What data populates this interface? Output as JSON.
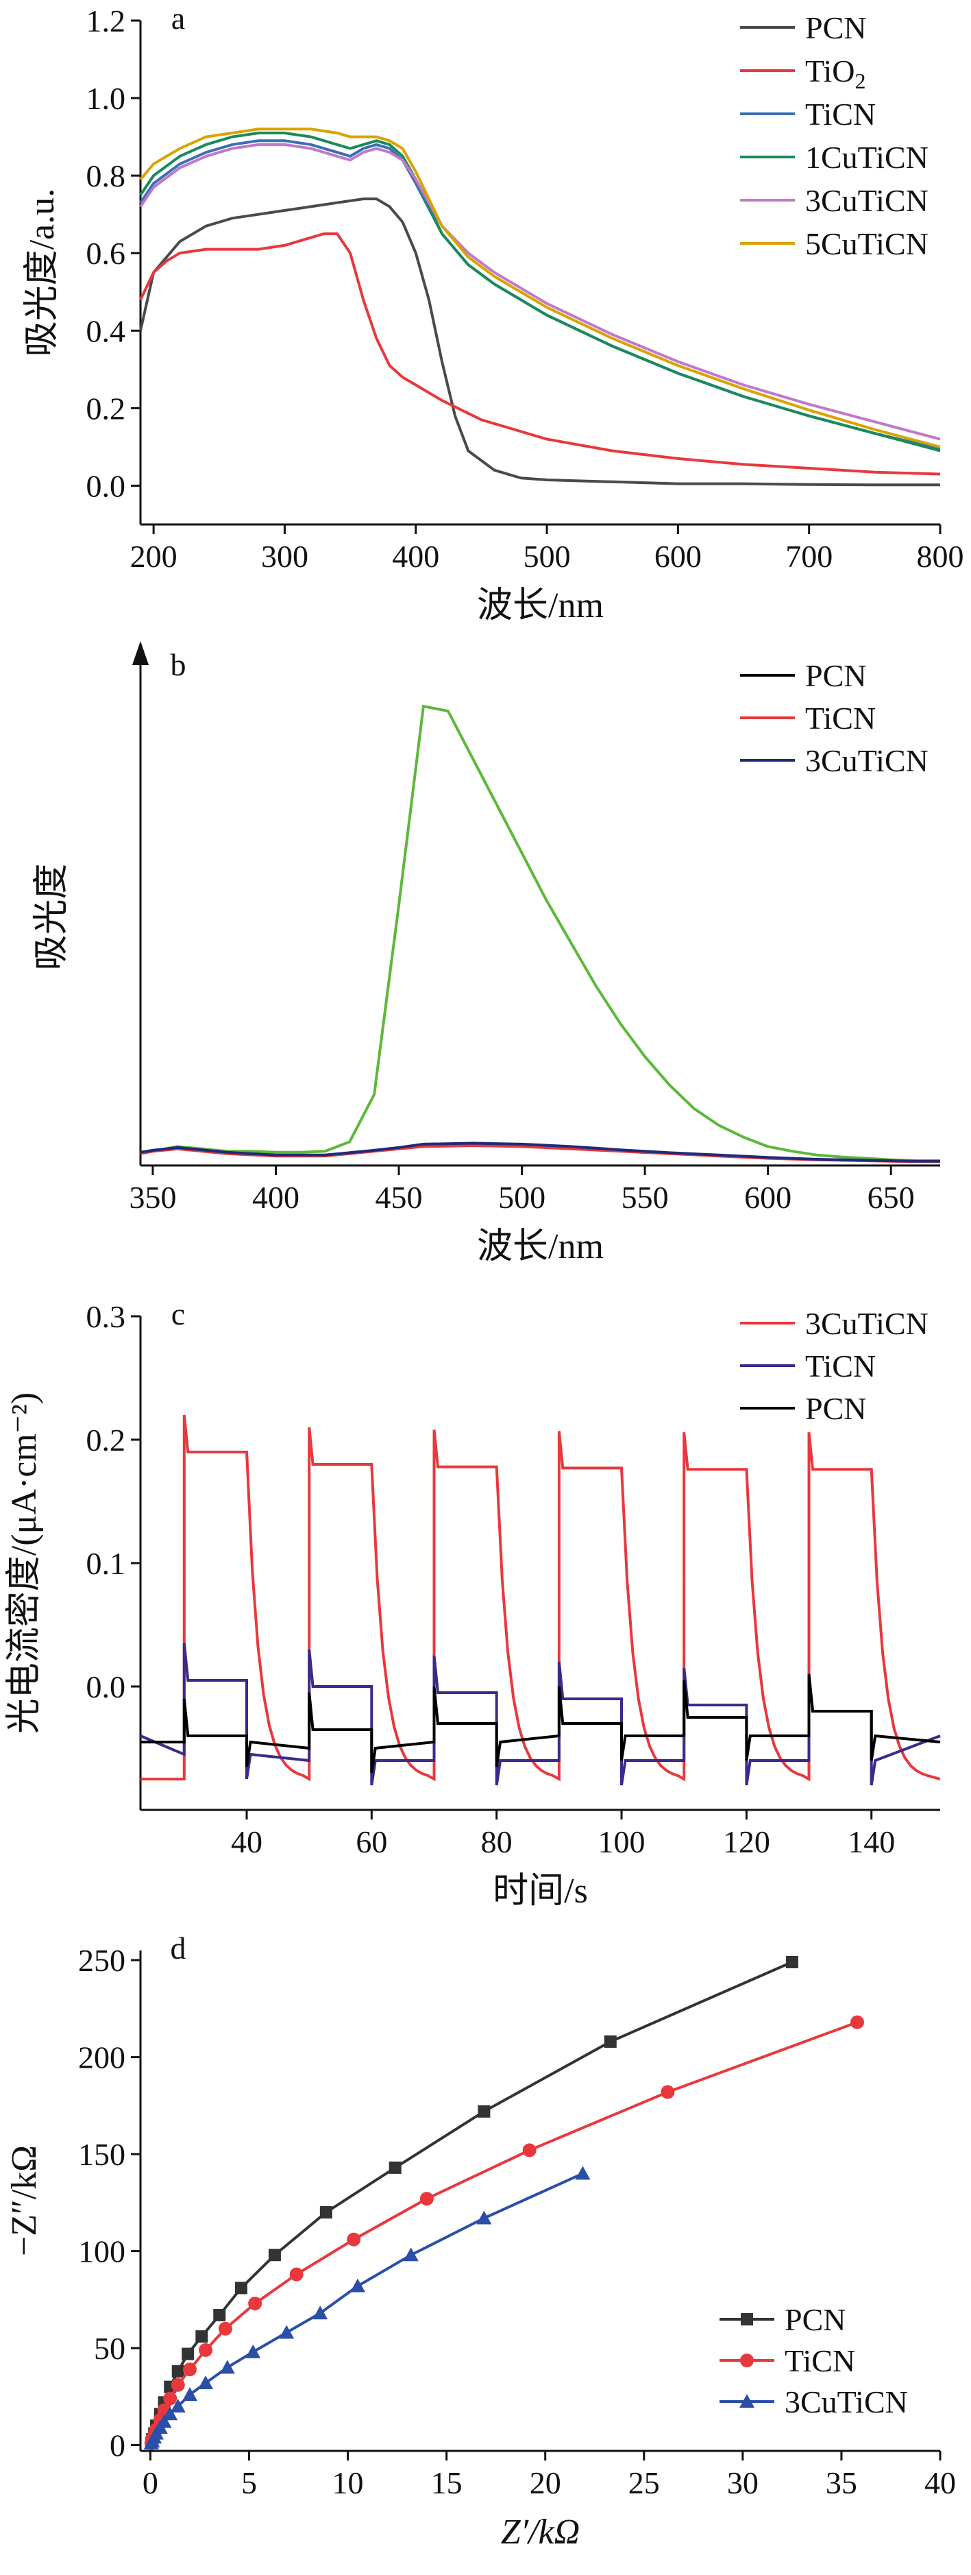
{
  "chart_data": [
    {
      "panel_label": "a",
      "type": "line",
      "xlabel": "波长/nm",
      "ylabel": "吸光度/a.u.",
      "xlim": [
        190,
        800
      ],
      "ylim": [
        -0.1,
        1.2
      ],
      "xticks": [
        200,
        300,
        400,
        500,
        600,
        700,
        800
      ],
      "yticks": [
        "0.0",
        "0.2",
        "0.4",
        "0.6",
        "0.8",
        "1.0",
        "1.2"
      ],
      "grid": false,
      "legend_position": "top-right",
      "series": [
        {
          "name": "PCN",
          "color": "#4a4a4a",
          "x": [
            190,
            200,
            220,
            240,
            260,
            280,
            300,
            320,
            340,
            360,
            370,
            380,
            390,
            400,
            410,
            420,
            430,
            440,
            460,
            480,
            500,
            550,
            600,
            650,
            700,
            750,
            800
          ],
          "y": [
            0.4,
            0.55,
            0.63,
            0.67,
            0.69,
            0.7,
            0.71,
            0.72,
            0.73,
            0.74,
            0.74,
            0.72,
            0.68,
            0.6,
            0.48,
            0.32,
            0.18,
            0.09,
            0.04,
            0.02,
            0.015,
            0.01,
            0.005,
            0.005,
            0.003,
            0.002,
            0.002
          ]
        },
        {
          "name": "TiO2",
          "name_sub": "2",
          "color": "#e8383d",
          "x": [
            190,
            200,
            210,
            220,
            240,
            260,
            280,
            300,
            320,
            330,
            340,
            350,
            360,
            370,
            380,
            390,
            400,
            420,
            450,
            500,
            550,
            600,
            650,
            700,
            750,
            800
          ],
          "y": [
            0.48,
            0.55,
            0.58,
            0.6,
            0.61,
            0.61,
            0.61,
            0.62,
            0.64,
            0.65,
            0.65,
            0.6,
            0.48,
            0.38,
            0.31,
            0.28,
            0.26,
            0.22,
            0.17,
            0.12,
            0.09,
            0.07,
            0.055,
            0.045,
            0.035,
            0.03
          ]
        },
        {
          "name": "TiCN",
          "color": "#3a6fb5",
          "x": [
            190,
            200,
            220,
            240,
            260,
            280,
            300,
            320,
            340,
            350,
            360,
            370,
            380,
            390,
            400,
            420,
            440,
            460,
            500,
            550,
            600,
            650,
            700,
            750,
            800
          ],
          "y": [
            0.73,
            0.78,
            0.83,
            0.86,
            0.88,
            0.89,
            0.89,
            0.88,
            0.86,
            0.85,
            0.87,
            0.88,
            0.87,
            0.84,
            0.78,
            0.65,
            0.57,
            0.52,
            0.44,
            0.36,
            0.29,
            0.23,
            0.18,
            0.135,
            0.095
          ]
        },
        {
          "name": "1CuTiCN",
          "color": "#1a8a5a",
          "x": [
            190,
            200,
            220,
            240,
            260,
            280,
            300,
            320,
            340,
            350,
            360,
            370,
            380,
            390,
            400,
            420,
            440,
            460,
            500,
            550,
            600,
            650,
            700,
            750,
            800
          ],
          "y": [
            0.75,
            0.8,
            0.85,
            0.88,
            0.9,
            0.91,
            0.91,
            0.9,
            0.88,
            0.87,
            0.88,
            0.89,
            0.88,
            0.85,
            0.79,
            0.65,
            0.57,
            0.52,
            0.44,
            0.36,
            0.29,
            0.23,
            0.18,
            0.135,
            0.09
          ]
        },
        {
          "name": "3CuTiCN",
          "color": "#c079c8",
          "x": [
            190,
            200,
            220,
            240,
            260,
            280,
            300,
            320,
            340,
            350,
            360,
            370,
            380,
            390,
            400,
            420,
            440,
            460,
            500,
            550,
            600,
            650,
            700,
            750,
            800
          ],
          "y": [
            0.72,
            0.77,
            0.82,
            0.85,
            0.87,
            0.88,
            0.88,
            0.87,
            0.85,
            0.84,
            0.86,
            0.87,
            0.86,
            0.84,
            0.79,
            0.67,
            0.6,
            0.55,
            0.47,
            0.39,
            0.32,
            0.26,
            0.21,
            0.165,
            0.12
          ]
        },
        {
          "name": "5CuTiCN",
          "color": "#d9a300",
          "x": [
            190,
            200,
            220,
            240,
            260,
            280,
            300,
            320,
            340,
            350,
            360,
            370,
            380,
            390,
            400,
            420,
            440,
            460,
            500,
            550,
            600,
            650,
            700,
            750,
            800
          ],
          "y": [
            0.79,
            0.83,
            0.87,
            0.9,
            0.91,
            0.92,
            0.92,
            0.92,
            0.91,
            0.9,
            0.9,
            0.9,
            0.89,
            0.87,
            0.81,
            0.67,
            0.59,
            0.54,
            0.46,
            0.38,
            0.31,
            0.25,
            0.195,
            0.145,
            0.1
          ]
        }
      ]
    },
    {
      "panel_label": "b",
      "type": "line",
      "xlabel": "波长/nm",
      "ylabel": "吸光度",
      "xlim": [
        345,
        670
      ],
      "ylim": [
        0,
        1.05
      ],
      "xticks": [
        350,
        400,
        450,
        500,
        550,
        600,
        650
      ],
      "yticks": [],
      "grid": false,
      "legend_position": "top-right",
      "series": [
        {
          "name": "PCN",
          "color": "#000000",
          "x": [
            345,
            350,
            360,
            370,
            380,
            390,
            400,
            410,
            420,
            430,
            440,
            450,
            460,
            470,
            480,
            490,
            500,
            510,
            520,
            530,
            540,
            550,
            560,
            570,
            580,
            590,
            600,
            610,
            620,
            630,
            640,
            650,
            660,
            670
          ],
          "y": [
            0.025,
            0.03,
            0.04,
            0.035,
            0.03,
            0.03,
            0.028,
            0.028,
            0.03,
            0.05,
            0.15,
            0.55,
            0.97,
            0.96,
            0.86,
            0.76,
            0.66,
            0.56,
            0.47,
            0.38,
            0.3,
            0.23,
            0.17,
            0.12,
            0.085,
            0.06,
            0.04,
            0.03,
            0.022,
            0.018,
            0.015,
            0.012,
            0.01,
            0.01
          ],
          "line_color": "#5cb83a"
        },
        {
          "name": "TiCN",
          "color": "#e8383d",
          "x": [
            345,
            350,
            360,
            380,
            400,
            420,
            440,
            450,
            460,
            480,
            500,
            520,
            540,
            560,
            580,
            600,
            620,
            640,
            660,
            670
          ],
          "y": [
            0.025,
            0.03,
            0.035,
            0.025,
            0.02,
            0.02,
            0.03,
            0.035,
            0.04,
            0.042,
            0.04,
            0.035,
            0.03,
            0.025,
            0.02,
            0.015,
            0.012,
            0.01,
            0.008,
            0.008
          ]
        },
        {
          "name": "3CuTiCN",
          "color": "#1f2a7a",
          "x": [
            345,
            350,
            360,
            380,
            400,
            420,
            440,
            450,
            460,
            480,
            500,
            520,
            540,
            560,
            580,
            600,
            620,
            640,
            660,
            670
          ],
          "y": [
            0.028,
            0.032,
            0.038,
            0.028,
            0.022,
            0.022,
            0.032,
            0.038,
            0.045,
            0.047,
            0.045,
            0.04,
            0.033,
            0.027,
            0.022,
            0.017,
            0.013,
            0.011,
            0.009,
            0.009
          ]
        }
      ]
    },
    {
      "panel_label": "c",
      "type": "line",
      "xlabel": "时间/s",
      "ylabel": "光电流密度/(μA·cm⁻²)",
      "xlim": [
        23,
        151
      ],
      "ylim": [
        -0.1,
        0.3
      ],
      "xticks": [
        40,
        60,
        80,
        100,
        120,
        140
      ],
      "yticks": [
        "0.0",
        "0.1",
        "0.2",
        "0.3"
      ],
      "grid": false,
      "legend_position": "top-right",
      "light_on": [
        30,
        50,
        70,
        90,
        110,
        130
      ],
      "light_off": [
        40,
        60,
        80,
        100,
        120,
        140
      ],
      "series": [
        {
          "name": "3CuTiCN",
          "color": "#e8383d",
          "on_levels": [
            0.19,
            0.18,
            0.178,
            0.177,
            0.176,
            0.176
          ],
          "base": -0.075
        },
        {
          "name": "TiCN",
          "color": "#3a2a8a",
          "on_levels": [
            0.005,
            0.0,
            -0.005,
            -0.01,
            -0.015,
            -0.02
          ],
          "off_levels": [
            -0.055,
            -0.06,
            -0.06,
            -0.06,
            -0.06,
            -0.06
          ],
          "base": -0.04
        },
        {
          "name": "PCN",
          "color": "#000000",
          "on_levels": [
            -0.04,
            -0.035,
            -0.03,
            -0.03,
            -0.025,
            -0.02
          ],
          "off_levels": [
            -0.045,
            -0.05,
            -0.045,
            -0.04,
            -0.04,
            -0.04
          ],
          "base": -0.045
        }
      ]
    },
    {
      "panel_label": "d",
      "type": "scatter",
      "xlabel": "Z′/kΩ",
      "ylabel": "−Z″/kΩ",
      "xlim": [
        -0.5,
        40
      ],
      "ylim": [
        -3,
        255
      ],
      "xticks": [
        0,
        5,
        10,
        15,
        20,
        25,
        30,
        35,
        40
      ],
      "yticks": [
        0,
        50,
        100,
        150,
        200,
        250
      ],
      "grid": false,
      "legend_position": "bottom-right",
      "series": [
        {
          "name": "PCN",
          "color": "#333333",
          "marker": "square",
          "x": [
            0.05,
            0.1,
            0.2,
            0.3,
            0.5,
            0.7,
            1.0,
            1.4,
            1.9,
            2.6,
            3.5,
            4.6,
            6.3,
            8.9,
            12.4,
            16.9,
            23.3,
            32.5
          ],
          "y": [
            1,
            3,
            6,
            10,
            16,
            22,
            30,
            38,
            47,
            56,
            67,
            81,
            98,
            120,
            143,
            172,
            208,
            249
          ]
        },
        {
          "name": "TiCN",
          "color": "#e8383d",
          "marker": "circle",
          "x": [
            0.05,
            0.1,
            0.2,
            0.3,
            0.5,
            0.7,
            1.0,
            1.4,
            2.0,
            2.8,
            3.8,
            5.3,
            7.4,
            10.3,
            14.0,
            19.2,
            26.2,
            35.8
          ],
          "y": [
            1,
            3,
            5,
            8,
            13,
            18,
            24,
            31,
            39,
            49,
            60,
            73,
            88,
            106,
            127,
            152,
            182,
            218
          ]
        },
        {
          "name": "3CuTiCN",
          "color": "#2a4fa8",
          "marker": "triangle",
          "x": [
            0.05,
            0.1,
            0.2,
            0.3,
            0.5,
            0.7,
            1.0,
            1.4,
            2.0,
            2.8,
            3.9,
            5.2,
            6.9,
            8.6,
            10.5,
            13.2,
            16.9,
            21.9
          ],
          "y": [
            1,
            2,
            4,
            6,
            9,
            12,
            16,
            20,
            26,
            32,
            40,
            48,
            58,
            68,
            82,
            98,
            117,
            140
          ]
        }
      ]
    }
  ]
}
